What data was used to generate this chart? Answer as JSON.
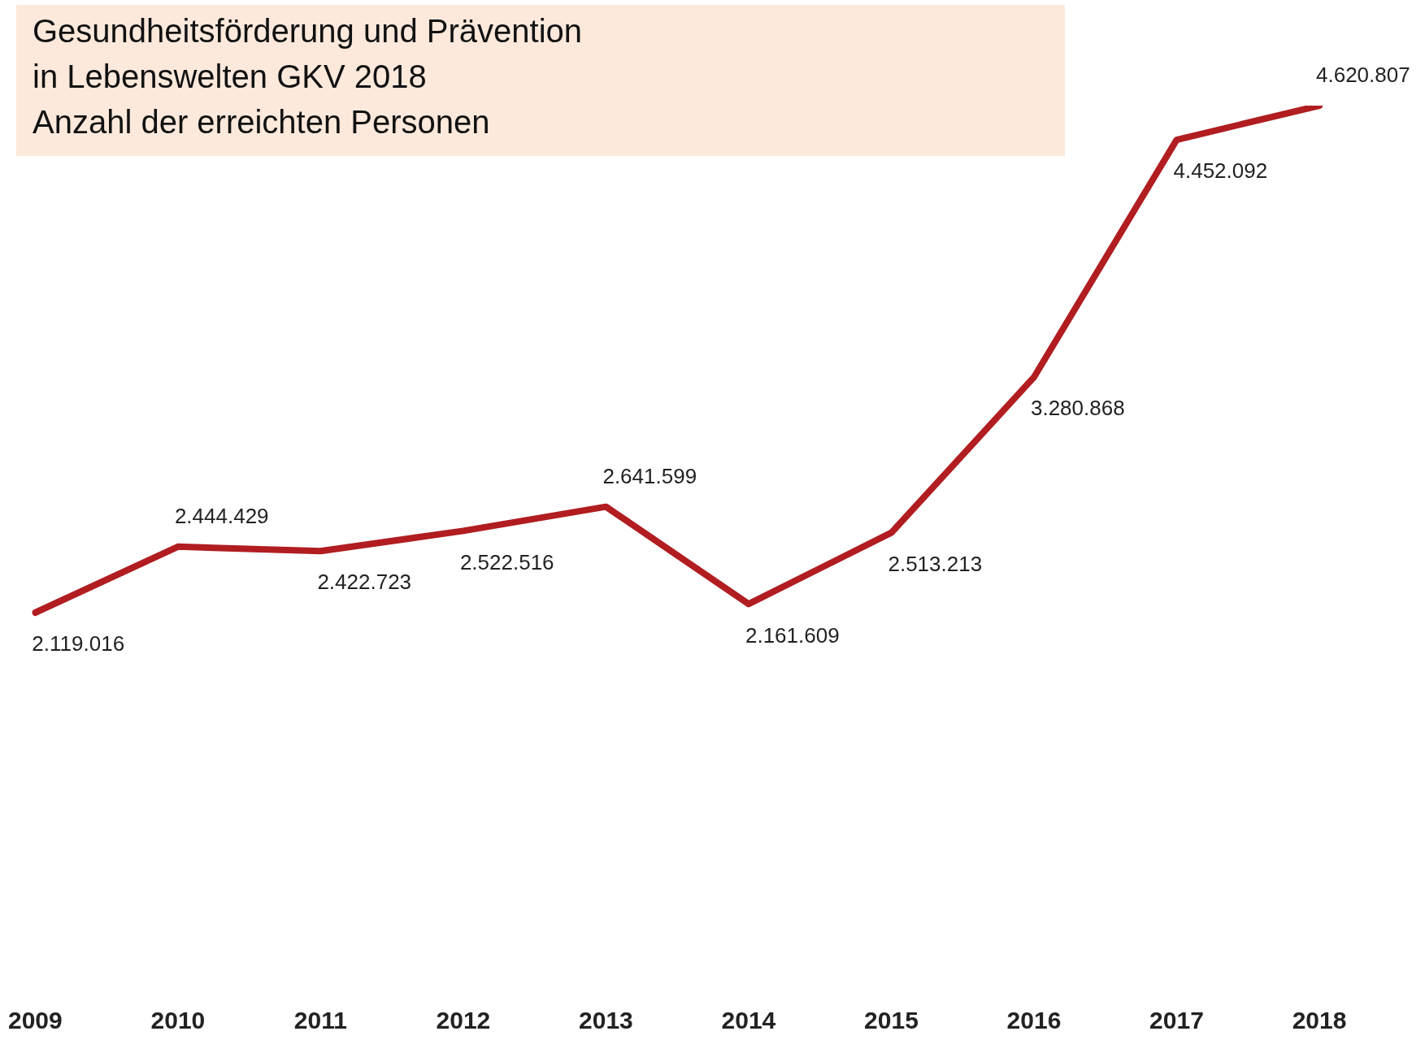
{
  "chart_data": {
    "type": "line",
    "title": "Gesundheitsförderung und Prävention\nin Lebenswelten GKV 2018\nAnzahl der erreichten Personen",
    "categories": [
      "2009",
      "2010",
      "2011",
      "2012",
      "2013",
      "2014",
      "2015",
      "2016",
      "2017",
      "2018"
    ],
    "values": [
      2119016,
      2444429,
      2422723,
      2522516,
      2641599,
      2161609,
      2513213,
      3280868,
      4452092,
      4620807
    ],
    "value_labels": [
      "2.119.016",
      "2.444.429",
      "2.422.723",
      "2.522.516",
      "2.641.599",
      "2.161.609",
      "2.513.213",
      "3.280.868",
      "4.452.092",
      "4.620.807"
    ],
    "color": "#b11d20"
  }
}
